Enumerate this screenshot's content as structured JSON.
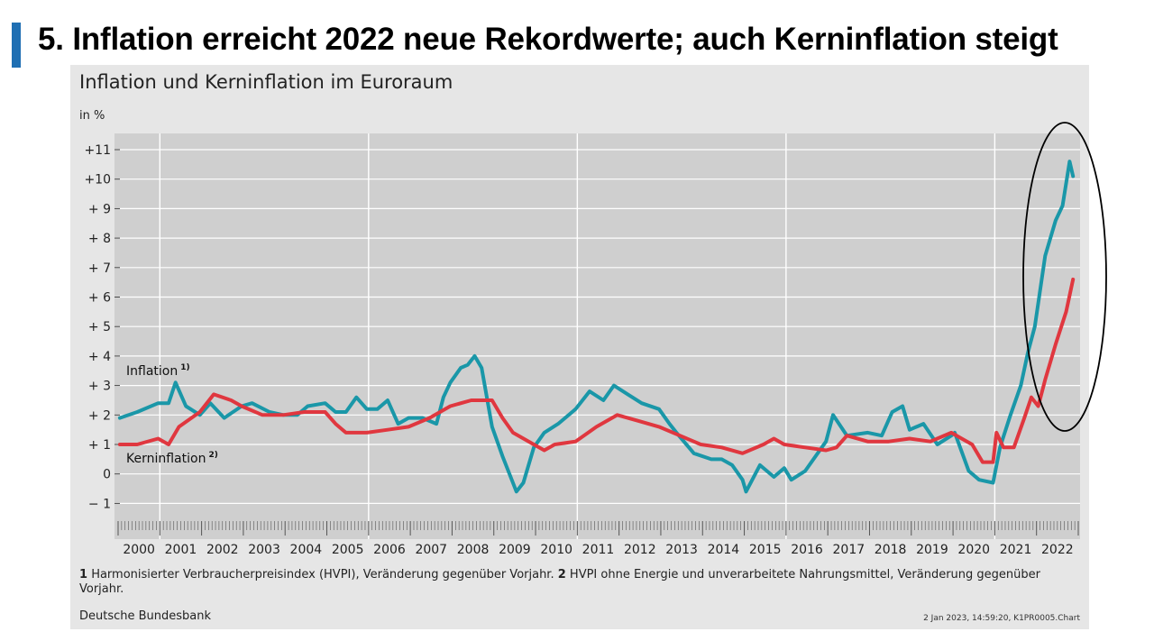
{
  "slide": {
    "title": "5. Inflation erreicht 2022 neue Rekordwerte; auch Kerninflation steigt",
    "accent_color": "#1f6fb3"
  },
  "footnotes": {
    "n1": "1",
    "t1": "Harmonisierter Verbraucherpreisindex (HVPI), Veränderung gegenüber Vorjahr.",
    "n2": "2",
    "t2": "HVPI ohne Energie und unverarbeitete Nahrungsmittel, Veränderung gegenüber Vorjahr."
  },
  "source": "Deutsche Bundesbank",
  "stamp": "2 Jan 2023, 14:59:20, K1PR0005.Chart",
  "chart_data": {
    "type": "line",
    "title": "Inflation und Kerninflation im Euroraum",
    "unit_label": "in %",
    "ylim": [
      -2,
      12
    ],
    "y_ticks": [
      {
        "v": 11,
        "label": "+11"
      },
      {
        "v": 10,
        "label": "+10"
      },
      {
        "v": 9,
        "label": "+ 9"
      },
      {
        "v": 8,
        "label": "+ 8"
      },
      {
        "v": 7,
        "label": "+ 7"
      },
      {
        "v": 6,
        "label": "+ 6"
      },
      {
        "v": 5,
        "label": "+ 5"
      },
      {
        "v": 4,
        "label": "+ 4"
      },
      {
        "v": 3,
        "label": "+ 3"
      },
      {
        "v": 2,
        "label": "+ 2"
      },
      {
        "v": 1,
        "label": "+ 1"
      },
      {
        "v": 0,
        "label": "0"
      },
      {
        "v": -1,
        "label": "− 1"
      }
    ],
    "years": [
      "2000",
      "2001",
      "2002",
      "2003",
      "2004",
      "2005",
      "2006",
      "2007",
      "2008",
      "2009",
      "2010",
      "2011",
      "2012",
      "2013",
      "2014",
      "2015",
      "2016",
      "2017",
      "2018",
      "2019",
      "2020",
      "2021",
      "2022"
    ],
    "x_start": "2000-01",
    "x_end": "2022-12",
    "grid": true,
    "series": [
      {
        "name": "Inflation",
        "footnote": "1)",
        "color": "#1a97a8",
        "points": [
          [
            "2000-01",
            1.9
          ],
          [
            "2000-06",
            2.1
          ],
          [
            "2000-12",
            2.4
          ],
          [
            "2001-03",
            2.4
          ],
          [
            "2001-05",
            3.1
          ],
          [
            "2001-08",
            2.3
          ],
          [
            "2001-12",
            2.0
          ],
          [
            "2002-03",
            2.4
          ],
          [
            "2002-07",
            1.9
          ],
          [
            "2002-12",
            2.3
          ],
          [
            "2003-03",
            2.4
          ],
          [
            "2003-08",
            2.1
          ],
          [
            "2003-12",
            2.0
          ],
          [
            "2004-04",
            2.0
          ],
          [
            "2004-07",
            2.3
          ],
          [
            "2004-12",
            2.4
          ],
          [
            "2005-03",
            2.1
          ],
          [
            "2005-06",
            2.1
          ],
          [
            "2005-09",
            2.6
          ],
          [
            "2005-12",
            2.2
          ],
          [
            "2006-03",
            2.2
          ],
          [
            "2006-06",
            2.5
          ],
          [
            "2006-09",
            1.7
          ],
          [
            "2006-12",
            1.9
          ],
          [
            "2007-04",
            1.9
          ],
          [
            "2007-08",
            1.7
          ],
          [
            "2007-10",
            2.6
          ],
          [
            "2007-12",
            3.1
          ],
          [
            "2008-03",
            3.6
          ],
          [
            "2008-05",
            3.7
          ],
          [
            "2008-07",
            4.0
          ],
          [
            "2008-09",
            3.6
          ],
          [
            "2008-12",
            1.6
          ],
          [
            "2009-03",
            0.6
          ],
          [
            "2009-05",
            0.0
          ],
          [
            "2009-07",
            -0.6
          ],
          [
            "2009-09",
            -0.3
          ],
          [
            "2009-12",
            0.9
          ],
          [
            "2010-03",
            1.4
          ],
          [
            "2010-07",
            1.7
          ],
          [
            "2010-12",
            2.2
          ],
          [
            "2011-04",
            2.8
          ],
          [
            "2011-08",
            2.5
          ],
          [
            "2011-11",
            3.0
          ],
          [
            "2012-03",
            2.7
          ],
          [
            "2012-07",
            2.4
          ],
          [
            "2012-12",
            2.2
          ],
          [
            "2013-03",
            1.7
          ],
          [
            "2013-05",
            1.4
          ],
          [
            "2013-10",
            0.7
          ],
          [
            "2014-03",
            0.5
          ],
          [
            "2014-06",
            0.5
          ],
          [
            "2014-09",
            0.3
          ],
          [
            "2014-12",
            -0.2
          ],
          [
            "2015-01",
            -0.6
          ],
          [
            "2015-05",
            0.3
          ],
          [
            "2015-09",
            -0.1
          ],
          [
            "2015-12",
            0.2
          ],
          [
            "2016-02",
            -0.2
          ],
          [
            "2016-06",
            0.1
          ],
          [
            "2016-12",
            1.1
          ],
          [
            "2017-02",
            2.0
          ],
          [
            "2017-06",
            1.3
          ],
          [
            "2017-12",
            1.4
          ],
          [
            "2018-04",
            1.3
          ],
          [
            "2018-07",
            2.1
          ],
          [
            "2018-10",
            2.3
          ],
          [
            "2018-12",
            1.5
          ],
          [
            "2019-04",
            1.7
          ],
          [
            "2019-08",
            1.0
          ],
          [
            "2019-12",
            1.3
          ],
          [
            "2020-01",
            1.4
          ],
          [
            "2020-05",
            0.1
          ],
          [
            "2020-08",
            -0.2
          ],
          [
            "2020-12",
            -0.3
          ],
          [
            "2021-02",
            0.9
          ],
          [
            "2021-05",
            2.0
          ],
          [
            "2021-08",
            3.0
          ],
          [
            "2021-10",
            4.1
          ],
          [
            "2021-12",
            5.0
          ],
          [
            "2022-03",
            7.4
          ],
          [
            "2022-06",
            8.6
          ],
          [
            "2022-08",
            9.1
          ],
          [
            "2022-10",
            10.6
          ],
          [
            "2022-11",
            10.1
          ]
        ]
      },
      {
        "name": "Kerninflation",
        "footnote": "2)",
        "color": "#e0373f",
        "points": [
          [
            "2000-01",
            1.0
          ],
          [
            "2000-06",
            1.0
          ],
          [
            "2000-12",
            1.2
          ],
          [
            "2001-03",
            1.0
          ],
          [
            "2001-06",
            1.6
          ],
          [
            "2001-12",
            2.1
          ],
          [
            "2002-04",
            2.7
          ],
          [
            "2002-09",
            2.5
          ],
          [
            "2002-12",
            2.3
          ],
          [
            "2003-06",
            2.0
          ],
          [
            "2003-12",
            2.0
          ],
          [
            "2004-06",
            2.1
          ],
          [
            "2004-12",
            2.1
          ],
          [
            "2005-03",
            1.7
          ],
          [
            "2005-06",
            1.4
          ],
          [
            "2005-12",
            1.4
          ],
          [
            "2006-06",
            1.5
          ],
          [
            "2006-12",
            1.6
          ],
          [
            "2007-06",
            1.9
          ],
          [
            "2007-12",
            2.3
          ],
          [
            "2008-06",
            2.5
          ],
          [
            "2008-12",
            2.5
          ],
          [
            "2009-03",
            1.9
          ],
          [
            "2009-06",
            1.4
          ],
          [
            "2009-12",
            1.0
          ],
          [
            "2010-03",
            0.8
          ],
          [
            "2010-06",
            1.0
          ],
          [
            "2010-12",
            1.1
          ],
          [
            "2011-06",
            1.6
          ],
          [
            "2011-12",
            2.0
          ],
          [
            "2012-06",
            1.8
          ],
          [
            "2012-12",
            1.6
          ],
          [
            "2013-06",
            1.3
          ],
          [
            "2013-12",
            1.0
          ],
          [
            "2014-06",
            0.9
          ],
          [
            "2014-12",
            0.7
          ],
          [
            "2015-06",
            1.0
          ],
          [
            "2015-09",
            1.2
          ],
          [
            "2015-12",
            1.0
          ],
          [
            "2016-06",
            0.9
          ],
          [
            "2016-12",
            0.8
          ],
          [
            "2017-03",
            0.9
          ],
          [
            "2017-06",
            1.3
          ],
          [
            "2017-12",
            1.1
          ],
          [
            "2018-06",
            1.1
          ],
          [
            "2018-12",
            1.2
          ],
          [
            "2019-06",
            1.1
          ],
          [
            "2019-12",
            1.4
          ],
          [
            "2020-03",
            1.2
          ],
          [
            "2020-06",
            1.0
          ],
          [
            "2020-09",
            0.4
          ],
          [
            "2020-12",
            0.4
          ],
          [
            "2021-01",
            1.4
          ],
          [
            "2021-03",
            0.9
          ],
          [
            "2021-06",
            0.9
          ],
          [
            "2021-09",
            1.9
          ],
          [
            "2021-11",
            2.6
          ],
          [
            "2022-01",
            2.3
          ],
          [
            "2022-03",
            3.2
          ],
          [
            "2022-06",
            4.4
          ],
          [
            "2022-09",
            5.5
          ],
          [
            "2022-11",
            6.6
          ]
        ]
      }
    ],
    "annotation": "ellipse highlighting 2021–2022 surge"
  }
}
